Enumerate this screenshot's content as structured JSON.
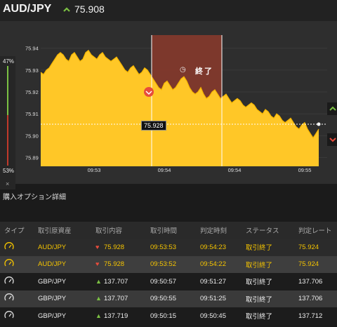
{
  "header": {
    "pair": "AUD/JPY",
    "price": "75.908",
    "direction_icon": "up-arrow-icon"
  },
  "sentiment": {
    "up_pct": "47%",
    "down_pct": "53%",
    "close_label": "×"
  },
  "chart": {
    "current_price_label": "75.928",
    "end_label": "終了",
    "colors": {
      "area": "#ffc727",
      "area_stroke": "#f7b500",
      "expiry_zone": "#8b3a2b",
      "bg": "#2e2e2e"
    }
  },
  "chart_data": {
    "type": "area",
    "ytick_labels": [
      "75.94",
      "75.93",
      "75.92",
      "75.91",
      "75.90",
      "75.89"
    ],
    "xtick_labels": [
      "09:53",
      "09:54",
      "09:54",
      "09:55"
    ],
    "ylim": [
      75.886,
      75.946
    ],
    "x": [
      0,
      4,
      8,
      12,
      16,
      20,
      24,
      28,
      32,
      36,
      40,
      44,
      48,
      52,
      56,
      60,
      64,
      68,
      72,
      76,
      80,
      84,
      88,
      92,
      96,
      100,
      104,
      108,
      112,
      116,
      120,
      124,
      128,
      132,
      136,
      140,
      144,
      148,
      152,
      156,
      160,
      164,
      168,
      172,
      176,
      180,
      184,
      188,
      192,
      196,
      200,
      204,
      208,
      212,
      216,
      220,
      224,
      228,
      232,
      236,
      240,
      244,
      248,
      252,
      256,
      260,
      264,
      268,
      272,
      276,
      280,
      284,
      288,
      292,
      296,
      300,
      304,
      308,
      312,
      316,
      320,
      324,
      328,
      332,
      336,
      340,
      344,
      348,
      352,
      356,
      360,
      364,
      368,
      372,
      376,
      380,
      384,
      388,
      392,
      396
    ],
    "values": [
      75.929,
      75.928,
      75.93,
      75.931,
      75.933,
      75.935,
      75.937,
      75.938,
      75.937,
      75.935,
      75.934,
      75.937,
      75.938,
      75.936,
      75.934,
      75.935,
      75.938,
      75.939,
      75.937,
      75.936,
      75.935,
      75.937,
      75.938,
      75.936,
      75.935,
      75.934,
      75.935,
      75.936,
      75.934,
      75.932,
      75.93,
      75.929,
      75.931,
      75.932,
      75.93,
      75.928,
      75.929,
      75.931,
      75.93,
      75.928,
      75.926,
      75.924,
      75.922,
      75.921,
      75.924,
      75.925,
      75.923,
      75.921,
      75.922,
      75.924,
      75.926,
      75.927,
      75.925,
      75.922,
      75.92,
      75.919,
      75.92,
      75.922,
      75.919,
      75.917,
      75.918,
      75.92,
      75.921,
      75.919,
      75.917,
      75.918,
      75.919,
      75.917,
      75.915,
      75.916,
      75.917,
      75.916,
      75.914,
      75.913,
      75.914,
      75.915,
      75.914,
      75.912,
      75.911,
      75.91,
      75.912,
      75.911,
      75.909,
      75.908,
      75.91,
      75.909,
      75.907,
      75.906,
      75.907,
      75.908,
      75.906,
      75.904,
      75.903,
      75.905,
      75.906,
      75.903,
      75.901,
      75.899,
      75.901,
      75.903
    ]
  },
  "section_title": "購入オプション詳細",
  "table": {
    "headers": [
      "タイプ",
      "取引原資産",
      "取引内容",
      "取引時間",
      "判定時刻",
      "ステータス",
      "判定レート"
    ],
    "rows": [
      {
        "asset": "AUD/JPY",
        "dir": "down",
        "rate": "75.928",
        "time": "09:53:53",
        "judge": "09:54:23",
        "status": "取引終了",
        "result": "75.924"
      },
      {
        "asset": "AUD/JPY",
        "dir": "down",
        "rate": "75.928",
        "time": "09:53:52",
        "judge": "09:54:22",
        "status": "取引終了",
        "result": "75.924"
      },
      {
        "asset": "GBP/JPY",
        "dir": "up",
        "rate": "137.707",
        "time": "09:50:57",
        "judge": "09:51:27",
        "status": "取引終了",
        "result": "137.706"
      },
      {
        "asset": "GBP/JPY",
        "dir": "up",
        "rate": "137.707",
        "time": "09:50:55",
        "judge": "09:51:25",
        "status": "取引終了",
        "result": "137.706"
      },
      {
        "asset": "GBP/JPY",
        "dir": "up",
        "rate": "137.719",
        "time": "09:50:15",
        "judge": "09:50:45",
        "status": "取引終了",
        "result": "137.712"
      }
    ]
  }
}
